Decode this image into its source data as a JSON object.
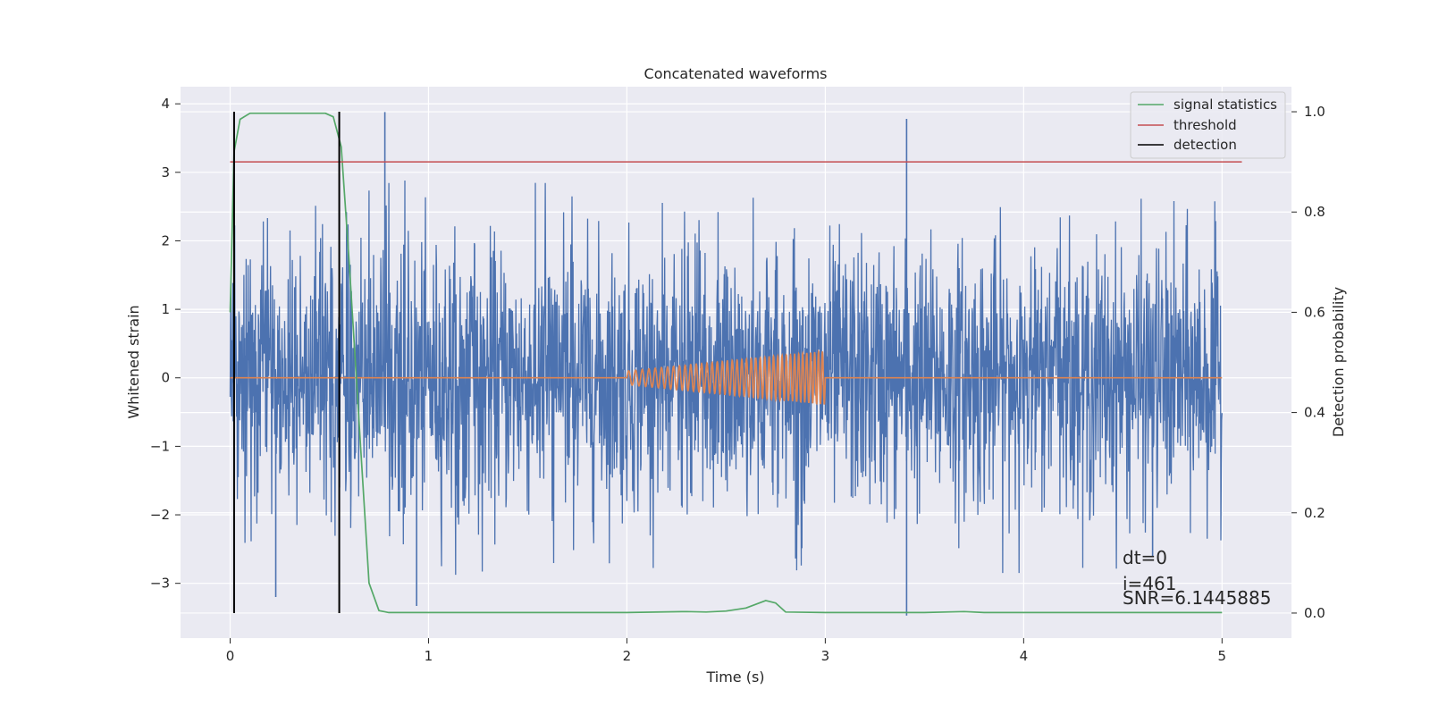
{
  "chart_data": {
    "type": "line",
    "title": "Concatenated waveforms",
    "xlabel": "Time (s)",
    "ylabel": "Whitened strain",
    "y2label": "Detection probability",
    "xlim": [
      -0.25,
      5.35
    ],
    "ylim": [
      -3.8,
      4.25
    ],
    "y2lim": [
      -0.05,
      1.05
    ],
    "x_ticks": [
      0,
      1,
      2,
      3,
      4,
      5
    ],
    "y_ticks": [
      -3,
      -2,
      -1,
      0,
      1,
      2,
      3,
      4
    ],
    "y2_ticks": [
      0.0,
      0.2,
      0.4,
      0.6,
      0.8,
      1.0
    ],
    "x_tick_labels": [
      "0",
      "1",
      "2",
      "3",
      "4",
      "5"
    ],
    "y_tick_labels": [
      "−3",
      "−2",
      "−1",
      "0",
      "1",
      "2",
      "3",
      "4"
    ],
    "y2_tick_labels": [
      "0.0",
      "0.2",
      "0.4",
      "0.6",
      "0.8",
      "1.0"
    ],
    "grid": true,
    "legend_position": "top-right",
    "series": [
      {
        "name": "",
        "axis": "left",
        "color": "#4c72b0",
        "description": "whitened noisy strain sampled over 0–5 s, values mostly within about ±2.9, occasional spikes to ±3.9",
        "x_range": [
          0,
          5
        ],
        "peak_events": [
          {
            "x": 0.78,
            "y": 3.88
          },
          {
            "x": 3.41,
            "y": 3.78
          },
          {
            "x": 0.94,
            "y": -3.33
          },
          {
            "x": 3.41,
            "y": -3.47
          },
          {
            "x": 0.23,
            "y": -3.2
          },
          {
            "x": 4.65,
            "y": -2.6
          }
        ]
      },
      {
        "name": "",
        "axis": "left",
        "color": "#dd8452",
        "description": "injected chirp waveform, zero outside 2–3 s, growing oscillation inside",
        "x": [
          2.0,
          2.25,
          2.5,
          2.75,
          3.0
        ],
        "amplitude": [
          0.1,
          0.17,
          0.24,
          0.31,
          0.39
        ]
      },
      {
        "name": "signal statistics",
        "axis": "right",
        "color": "#55a868",
        "x": [
          0.0,
          0.02,
          0.05,
          0.1,
          0.2,
          0.3,
          0.4,
          0.48,
          0.52,
          0.56,
          0.6,
          0.65,
          0.7,
          0.75,
          0.8,
          1.0,
          1.5,
          2.0,
          2.3,
          2.4,
          2.5,
          2.6,
          2.7,
          2.75,
          2.8,
          3.0,
          3.5,
          3.7,
          3.8,
          4.0,
          4.5,
          5.0
        ],
        "y": [
          0.6,
          0.92,
          0.985,
          0.997,
          0.997,
          0.997,
          0.997,
          0.997,
          0.99,
          0.93,
          0.7,
          0.38,
          0.06,
          0.005,
          0.001,
          0.001,
          0.001,
          0.001,
          0.003,
          0.002,
          0.004,
          0.01,
          0.025,
          0.02,
          0.002,
          0.001,
          0.001,
          0.003,
          0.001,
          0.001,
          0.001,
          0.001
        ]
      },
      {
        "name": "threshold",
        "axis": "right",
        "color": "#c44e52",
        "x": [
          0.0,
          5.1
        ],
        "y": [
          0.9,
          0.9
        ]
      },
      {
        "name": "detection",
        "axis": "right",
        "color": "#000000",
        "segments": [
          {
            "x": 0.02,
            "y": [
              0.0,
              1.0
            ]
          },
          {
            "x": 0.55,
            "y": [
              0.0,
              1.0
            ]
          }
        ]
      }
    ],
    "annotations": [
      "dt=0",
      "i=461",
      "SNR=6.1445885"
    ]
  }
}
